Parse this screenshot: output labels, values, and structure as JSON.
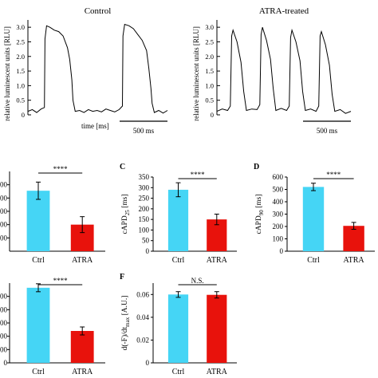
{
  "chart_data": [
    {
      "type": "line",
      "panel": "",
      "title": "Control",
      "xlabel": "time [ms]",
      "ylabel": "relative luminescent units [RLU]",
      "ylim": [
        0,
        3.25
      ],
      "yticks": [
        "0",
        "0.5",
        "1.0",
        "1.5",
        "2.0",
        "2.5",
        "3.0"
      ],
      "scale_bar": "500 ms",
      "series": [
        {
          "x": [
            0,
            40,
            80,
            120,
            150,
            155,
            170,
            200,
            240,
            280,
            320,
            360,
            380,
            400,
            410,
            430,
            470,
            510,
            550,
            590,
            630,
            670,
            710,
            750,
            790,
            830,
            860,
            865,
            880,
            920,
            960,
            1000,
            1040,
            1080,
            1100,
            1120,
            1130,
            1150,
            1190,
            1230,
            1270
          ],
          "y": [
            0.12,
            0.18,
            0.08,
            0.2,
            0.25,
            2.6,
            3.05,
            3.0,
            2.9,
            2.85,
            2.7,
            2.3,
            1.9,
            1.2,
            0.5,
            0.12,
            0.15,
            0.08,
            0.18,
            0.12,
            0.15,
            0.1,
            0.2,
            0.15,
            0.1,
            0.18,
            0.3,
            2.7,
            3.1,
            3.05,
            2.95,
            2.75,
            2.55,
            2.2,
            1.6,
            0.9,
            0.4,
            0.08,
            0.15,
            0.06,
            0.15
          ]
        }
      ]
    },
    {
      "type": "line",
      "panel": "",
      "title": "ATRA-treated",
      "xlabel": "",
      "ylabel": "relative luminescent units [RLU]",
      "ylim": [
        0,
        3.25
      ],
      "yticks": [
        "0",
        "0.5",
        "1.0",
        "1.5",
        "2.0",
        "2.5",
        "3.0"
      ],
      "scale_bar": "500 ms",
      "series": [
        {
          "x": [
            0,
            40,
            80,
            100,
            110,
            120,
            150,
            180,
            200,
            220,
            260,
            300,
            320,
            330,
            340,
            370,
            400,
            420,
            440,
            480,
            520,
            540,
            550,
            560,
            590,
            620,
            640,
            660,
            700,
            740,
            760,
            770,
            780,
            810,
            840,
            860,
            880,
            920,
            960,
            1000
          ],
          "y": [
            0.12,
            0.2,
            0.15,
            0.3,
            2.7,
            2.9,
            2.5,
            1.8,
            0.8,
            0.15,
            0.2,
            0.18,
            0.35,
            2.75,
            3.0,
            2.55,
            1.9,
            0.9,
            0.15,
            0.22,
            0.15,
            0.3,
            2.65,
            2.9,
            2.5,
            1.85,
            0.8,
            0.15,
            0.2,
            0.12,
            0.3,
            2.7,
            2.85,
            2.4,
            1.7,
            0.7,
            0.12,
            0.18,
            0.05,
            0.12
          ]
        }
      ]
    },
    {
      "type": "bar",
      "panel": "",
      "categories": [
        "Ctrl",
        "ATRA"
      ],
      "values": [
        910,
        400
      ],
      "errors": [
        130,
        120
      ],
      "ylim": [
        0,
        1200
      ],
      "yticks": [
        "200",
        "400",
        "600",
        "800",
        "1000"
      ],
      "ylabel": "",
      "significance": "****",
      "colors": [
        "#45d5f5",
        "#e8120c"
      ]
    },
    {
      "type": "bar",
      "panel": "C",
      "categories": [
        "Ctrl",
        "ATRA"
      ],
      "values": [
        290,
        150
      ],
      "errors": [
        33,
        25
      ],
      "ylim": [
        0,
        350
      ],
      "yticks": [
        "0",
        "50",
        "100",
        "150",
        "200",
        "250",
        "300",
        "350"
      ],
      "ylabel_main": "cAPD",
      "ylabel_sub": "25",
      "ylabel_unit": "[ms]",
      "significance": "****",
      "colors": [
        "#45d5f5",
        "#e8120c"
      ]
    },
    {
      "type": "bar",
      "panel": "D",
      "categories": [
        "Ctrl",
        "ATRA"
      ],
      "values": [
        520,
        205
      ],
      "errors": [
        30,
        28
      ],
      "ylim": [
        0,
        600
      ],
      "yticks": [
        "0",
        "100",
        "200",
        "300",
        "400",
        "500",
        "600"
      ],
      "ylabel_main": "cAPD",
      "ylabel_sub": "90",
      "ylabel_unit": "[ms]",
      "significance": "****",
      "colors": [
        "#45d5f5",
        "#e8120c"
      ]
    },
    {
      "type": "bar",
      "panel": "",
      "categories": [
        "Ctrl",
        "ATRA"
      ],
      "values": [
        565,
        240
      ],
      "errors": [
        30,
        30
      ],
      "ylim": [
        0,
        600
      ],
      "yticks": [
        "0",
        "100",
        "200",
        "300",
        "400",
        "500"
      ],
      "ylabel": "",
      "significance": "****",
      "colors": [
        "#45d5f5",
        "#e8120c"
      ]
    },
    {
      "type": "bar",
      "panel": "F",
      "categories": [
        "Ctrl",
        "ATRA"
      ],
      "values": [
        0.06,
        0.0597
      ],
      "errors": [
        0.0025,
        0.0028
      ],
      "ylim": [
        0,
        0.07
      ],
      "yticks": [
        "0",
        "0.02",
        "0.04",
        "0.06"
      ],
      "ylabel_main": "d(-F)/dt",
      "ylabel_sub": "max",
      "ylabel_unit": "[A.U.]",
      "significance": "N.S.",
      "colors": [
        "#45d5f5",
        "#e8120c"
      ]
    }
  ]
}
